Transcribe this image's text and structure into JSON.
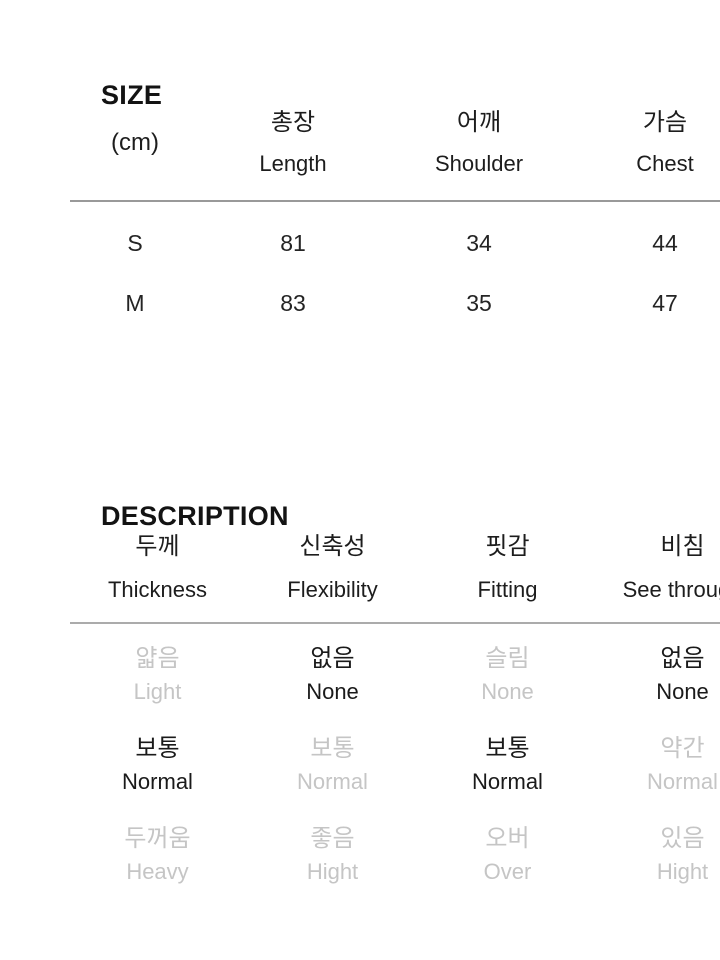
{
  "size_section": {
    "title": "SIZE",
    "unit_label": "(cm)",
    "columns": [
      {
        "kr": "총장",
        "en": "Length"
      },
      {
        "kr": "어깨",
        "en": "Shoulder"
      },
      {
        "kr": "가슴",
        "en": "Chest"
      }
    ],
    "rows": [
      {
        "size": "S",
        "values": [
          "81",
          "34",
          "44"
        ]
      },
      {
        "size": "M",
        "values": [
          "83",
          "35",
          "47"
        ]
      }
    ]
  },
  "description_section": {
    "title": "DESCRIPTION",
    "columns": [
      {
        "kr": "두께",
        "en": "Thickness"
      },
      {
        "kr": "신축성",
        "en": "Flexibility"
      },
      {
        "kr": "핏감",
        "en": "Fitting"
      },
      {
        "kr": "비침",
        "en": "See through"
      }
    ],
    "option_rows": [
      [
        {
          "kr": "얇음",
          "en": "Light",
          "selected": false
        },
        {
          "kr": "없음",
          "en": "None",
          "selected": true
        },
        {
          "kr": "슬림",
          "en": "None",
          "selected": false
        },
        {
          "kr": "없음",
          "en": "None",
          "selected": true
        }
      ],
      [
        {
          "kr": "보통",
          "en": "Normal",
          "selected": true
        },
        {
          "kr": "보통",
          "en": "Normal",
          "selected": false
        },
        {
          "kr": "보통",
          "en": "Normal",
          "selected": true
        },
        {
          "kr": "약간",
          "en": "Normal",
          "selected": false
        }
      ],
      [
        {
          "kr": "두꺼움",
          "en": "Heavy",
          "selected": false
        },
        {
          "kr": "좋음",
          "en": "Hight",
          "selected": false
        },
        {
          "kr": "오버",
          "en": "Over",
          "selected": false
        },
        {
          "kr": "있음",
          "en": "Hight",
          "selected": false
        }
      ]
    ]
  },
  "colors": {
    "text_dark": "#1d1d1d",
    "selected_option": "#1a1a1a",
    "unselected_option": "#c5c5c5",
    "size_divider": "#999999",
    "desc_divider": "#ababab"
  }
}
